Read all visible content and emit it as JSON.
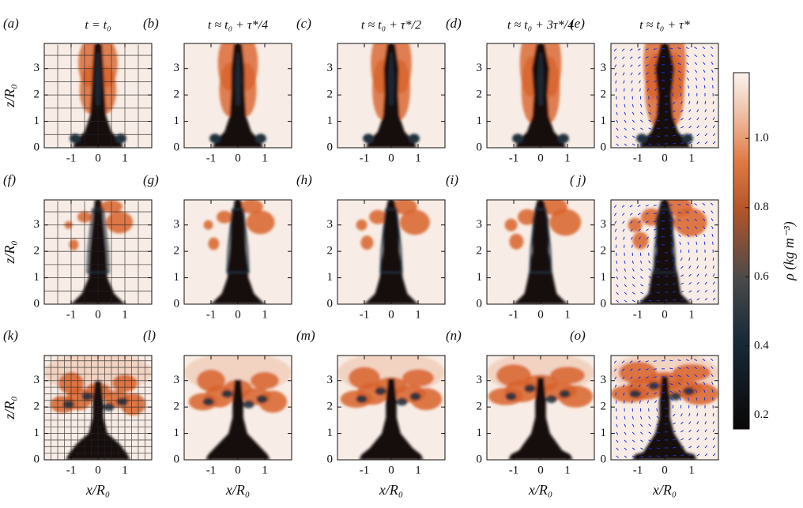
{
  "figure": {
    "panels": [
      {
        "label": "(a)",
        "title": "t = t₀"
      },
      {
        "label": "(b)",
        "title": "t ≈ t₀ + τ*/4"
      },
      {
        "label": "(c)",
        "title": "t ≈ t₀ + τ*/2"
      },
      {
        "label": "(d)",
        "title": "t ≈ t₀ + 3τ*/4"
      },
      {
        "label": "(e)",
        "title": "t ≈ t₀ + τ*"
      },
      {
        "label": "(f)"
      },
      {
        "label": "(g)"
      },
      {
        "label": "(h)"
      },
      {
        "label": "(i)"
      },
      {
        "label": "( j)"
      },
      {
        "label": "(k)"
      },
      {
        "label": "(l)"
      },
      {
        "label": "(m)"
      },
      {
        "label": "(n)"
      },
      {
        "label": "(o)"
      }
    ],
    "x_label": "x/R₀",
    "y_label": "z/R₀",
    "xlim": [
      -2,
      2
    ],
    "ylim": [
      0,
      3.95
    ],
    "xticks": [
      -1,
      0,
      1
    ],
    "yticks": [
      0,
      1,
      2,
      3
    ],
    "colorbar": {
      "label": "ρ (kg m⁻³)",
      "lim": [
        0.16,
        1.19
      ],
      "ticks": [
        0.2,
        0.4,
        0.6,
        0.8,
        {
          "value": 1,
          "label": "1.0"
        }
      ]
    }
  }
}
